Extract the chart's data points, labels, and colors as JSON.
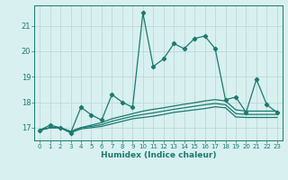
{
  "xlabel": "Humidex (Indice chaleur)",
  "x": [
    0,
    1,
    2,
    3,
    4,
    5,
    6,
    7,
    8,
    9,
    10,
    11,
    12,
    13,
    14,
    15,
    16,
    17,
    18,
    19,
    20,
    21,
    22,
    23
  ],
  "line1": [
    16.9,
    17.1,
    17.0,
    16.8,
    17.8,
    17.5,
    17.3,
    18.3,
    18.0,
    17.8,
    21.5,
    19.4,
    19.7,
    20.3,
    20.1,
    20.5,
    20.6,
    20.1,
    18.1,
    18.2,
    17.6,
    18.9,
    17.9,
    17.6
  ],
  "line2": [
    16.9,
    17.0,
    17.0,
    16.85,
    17.0,
    17.1,
    17.2,
    17.35,
    17.45,
    17.55,
    17.65,
    17.72,
    17.78,
    17.85,
    17.92,
    17.98,
    18.05,
    18.1,
    18.05,
    17.7,
    17.65,
    17.65,
    17.65,
    17.65
  ],
  "line3": [
    16.9,
    17.0,
    17.0,
    16.85,
    17.0,
    17.05,
    17.12,
    17.25,
    17.35,
    17.45,
    17.52,
    17.58,
    17.65,
    17.72,
    17.78,
    17.84,
    17.9,
    17.95,
    17.9,
    17.55,
    17.52,
    17.52,
    17.52,
    17.52
  ],
  "line4": [
    16.9,
    17.0,
    17.0,
    16.8,
    16.95,
    17.0,
    17.05,
    17.15,
    17.25,
    17.35,
    17.4,
    17.45,
    17.52,
    17.6,
    17.65,
    17.7,
    17.75,
    17.82,
    17.78,
    17.42,
    17.4,
    17.4,
    17.4,
    17.4
  ],
  "line_color": "#1a7a6e",
  "bg_color": "#d8f0f0",
  "grid_color": "#c0d8d8",
  "ylim": [
    16.5,
    21.8
  ],
  "yticks": [
    17,
    18,
    19,
    20,
    21
  ],
  "xlim": [
    -0.5,
    23.5
  ]
}
